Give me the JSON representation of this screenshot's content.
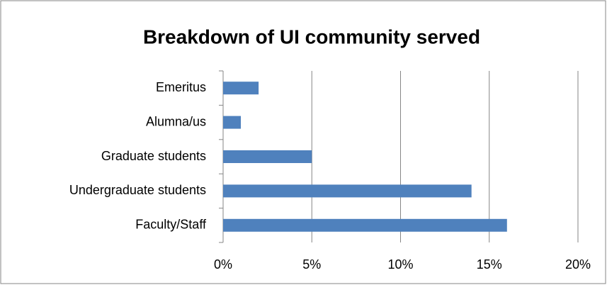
{
  "chart_data": {
    "type": "bar",
    "orientation": "horizontal",
    "title": "Breakdown of UI community served",
    "categories": [
      "Emeritus",
      "Alumna/us",
      "Graduate students",
      "Undergraduate students",
      "Faculty/Staff"
    ],
    "values": [
      2,
      1,
      5,
      14,
      16
    ],
    "color": "#4f81bd",
    "xlim": [
      0,
      20
    ],
    "xticks": [
      {
        "value": 0,
        "label": "0%"
      },
      {
        "value": 5,
        "label": "5%"
      },
      {
        "value": 10,
        "label": "10%"
      },
      {
        "value": 15,
        "label": "15%"
      },
      {
        "value": 20,
        "label": "20%"
      }
    ],
    "grid": true
  }
}
